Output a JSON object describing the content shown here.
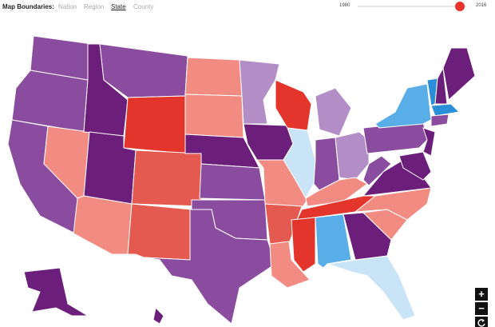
{
  "header": {
    "label": "Map Boundaries:",
    "options": [
      "Nation",
      "Region",
      "State",
      "County"
    ],
    "active": 2
  },
  "slider": {
    "start_label": "1980",
    "end_label": "2016"
  },
  "zoom": {
    "in": "+",
    "out": "−"
  }
}
